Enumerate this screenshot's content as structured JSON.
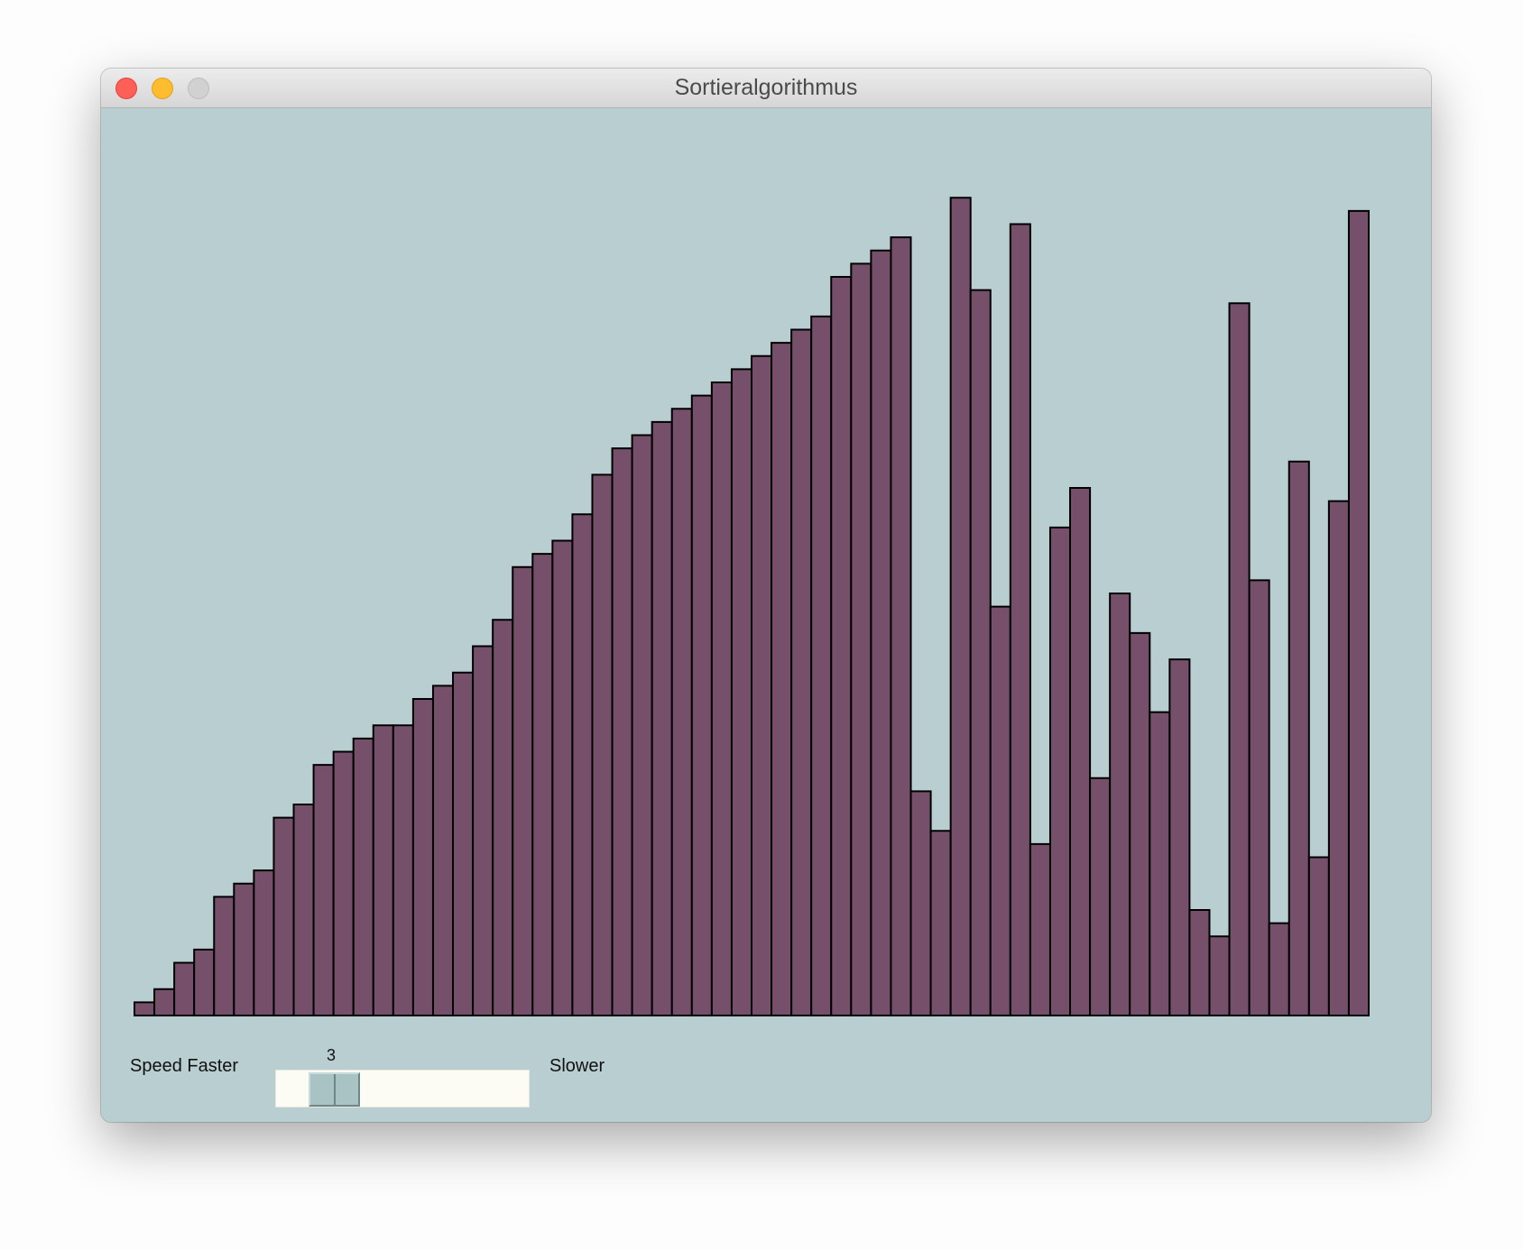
{
  "window": {
    "title": "Sortieralgorithmus"
  },
  "controls": {
    "speed_label": "Speed Faster",
    "slower_label": "Slower",
    "slider_value": "3"
  },
  "colors": {
    "background": "#b8ced0",
    "bar_fill": "#76506b",
    "bar_stroke": "#000000"
  },
  "chart_data": {
    "type": "bar",
    "values": [
      1,
      2,
      4,
      5,
      9,
      10,
      11,
      15,
      16,
      19,
      20,
      21,
      22,
      22,
      24,
      25,
      26,
      28,
      30,
      34,
      35,
      36,
      38,
      41,
      43,
      44,
      45,
      46,
      47,
      48,
      49,
      50,
      51,
      52,
      53,
      56,
      57,
      58,
      59,
      17,
      14,
      62,
      55,
      31,
      60,
      13,
      37,
      40,
      18,
      32,
      29,
      23,
      27,
      8,
      6,
      54,
      33,
      7,
      42,
      12,
      39,
      61
    ],
    "ylim": [
      0,
      64
    ]
  }
}
